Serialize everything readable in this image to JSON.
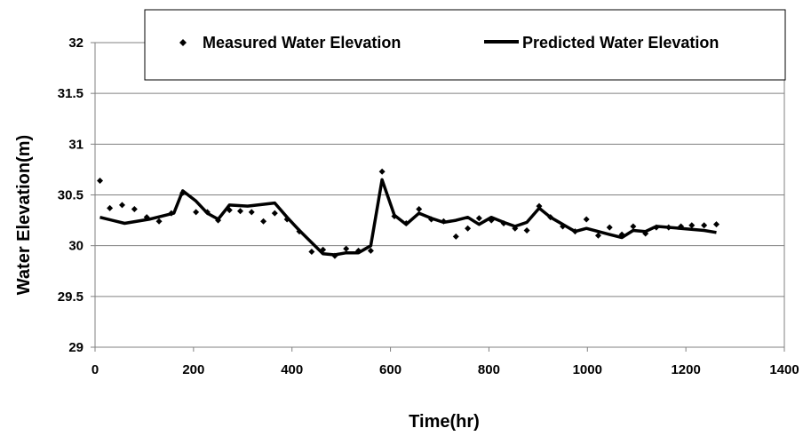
{
  "chart_data": {
    "type": "line",
    "title": "",
    "xlabel": "Time(hr)",
    "ylabel": "Water Elevation(m)",
    "xlim": [
      0,
      1400
    ],
    "ylim": [
      29,
      32
    ],
    "xticks": [
      "0",
      "200",
      "400",
      "600",
      "800",
      "1000",
      "1200",
      "1400"
    ],
    "yticks": [
      "29",
      "29.5",
      "30",
      "30.5",
      "31",
      "31.5",
      "32"
    ],
    "grid": "horizontal",
    "legend_position": "top",
    "series": [
      {
        "name": "Measured Water Elevation",
        "style": "markers",
        "marker": "diamond",
        "color": "#000000",
        "x": [
          10,
          30,
          55,
          80,
          105,
          130,
          155,
          178,
          205,
          228,
          250,
          273,
          295,
          318,
          342,
          365,
          390,
          415,
          440,
          463,
          487,
          510,
          535,
          560,
          583,
          608,
          632,
          658,
          683,
          708,
          733,
          757,
          780,
          805,
          830,
          853,
          877,
          902,
          925,
          950,
          975,
          998,
          1022,
          1045,
          1070,
          1093,
          1118,
          1140,
          1165,
          1190,
          1212,
          1237,
          1262
        ],
        "y": [
          30.64,
          30.37,
          30.4,
          30.36,
          30.28,
          30.24,
          30.32,
          30.52,
          30.33,
          30.33,
          30.25,
          30.35,
          30.34,
          30.33,
          30.24,
          30.32,
          30.26,
          30.14,
          29.94,
          29.96,
          29.9,
          29.97,
          29.95,
          29.95,
          30.73,
          30.29,
          30.22,
          30.36,
          30.26,
          30.24,
          30.09,
          30.17,
          30.27,
          30.25,
          30.22,
          30.17,
          30.15,
          30.39,
          30.28,
          30.19,
          30.14,
          30.26,
          30.1,
          30.18,
          30.11,
          30.19,
          30.12,
          30.18,
          30.18,
          30.19,
          30.2,
          30.2,
          30.21
        ]
      },
      {
        "name": "Predicted Water Elevation",
        "style": "line",
        "color": "#000000",
        "x": [
          10,
          60,
          110,
          160,
          178,
          205,
          228,
          250,
          273,
          310,
          365,
          390,
          415,
          440,
          463,
          487,
          510,
          535,
          560,
          583,
          608,
          632,
          658,
          683,
          708,
          733,
          757,
          780,
          805,
          830,
          853,
          877,
          902,
          925,
          950,
          975,
          998,
          1022,
          1045,
          1070,
          1093,
          1118,
          1140,
          1190,
          1237,
          1262
        ],
        "y": [
          30.28,
          30.22,
          30.26,
          30.32,
          30.54,
          30.44,
          30.32,
          30.26,
          30.4,
          30.39,
          30.42,
          30.28,
          30.15,
          30.03,
          29.92,
          29.91,
          29.93,
          29.93,
          30.0,
          30.65,
          30.3,
          30.21,
          30.32,
          30.27,
          30.23,
          30.25,
          30.28,
          30.21,
          30.28,
          30.23,
          30.19,
          30.23,
          30.37,
          30.28,
          30.21,
          30.14,
          30.17,
          30.14,
          30.11,
          30.08,
          30.15,
          30.14,
          30.19,
          30.17,
          30.15,
          30.13
        ]
      }
    ]
  }
}
